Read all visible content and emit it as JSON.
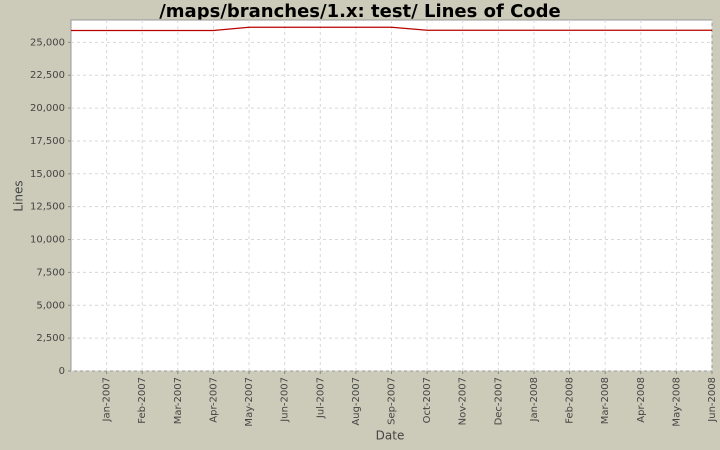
{
  "chart_data": {
    "type": "line",
    "title": "/maps/branches/1.x: test/ Lines of Code",
    "x_label": "Date",
    "y_label": "Lines",
    "x": [
      "Dec-2006",
      "Jan-2007",
      "Feb-2007",
      "Mar-2007",
      "Apr-2007",
      "May-2007",
      "Jun-2007",
      "Jul-2007",
      "Aug-2007",
      "Sep-2007",
      "Oct-2007",
      "Nov-2007",
      "Dec-2007",
      "Jan-2008",
      "Feb-2008",
      "Mar-2008",
      "Apr-2008",
      "May-2008",
      "Jun-2008"
    ],
    "series": [
      {
        "name": "Lines",
        "color": "#bb0000",
        "values": [
          25900,
          25900,
          25900,
          25900,
          25900,
          26150,
          26150,
          26150,
          26150,
          26150,
          25920,
          25920,
          25920,
          25920,
          25920,
          25920,
          25920,
          25920,
          25920
        ]
      }
    ],
    "xlim": [
      "Dec-2006",
      "Jun-2008"
    ],
    "xticks": [
      "Jan-2007",
      "Feb-2007",
      "Mar-2007",
      "Apr-2007",
      "May-2007",
      "Jun-2007",
      "Jul-2007",
      "Aug-2007",
      "Sep-2007",
      "Oct-2007",
      "Nov-2007",
      "Dec-2007",
      "Jan-2008",
      "Feb-2008",
      "Mar-2008",
      "Apr-2008",
      "May-2008",
      "Jun-2008"
    ],
    "ylim": [
      0,
      26700
    ],
    "yticks": [
      0,
      {
        "value": 2500,
        "label": "2,500"
      },
      {
        "value": 5000,
        "label": "5,000"
      },
      {
        "value": 7500,
        "label": "7,500"
      },
      {
        "value": 10000,
        "label": "10,000"
      },
      {
        "value": 12500,
        "label": "12,500"
      },
      {
        "value": 15000,
        "label": "15,000"
      },
      {
        "value": 17500,
        "label": "17,500"
      },
      {
        "value": 20000,
        "label": "20,000"
      },
      {
        "value": 22500,
        "label": "22,500"
      },
      {
        "value": 25000,
        "label": "25,000"
      }
    ],
    "grid": true
  }
}
